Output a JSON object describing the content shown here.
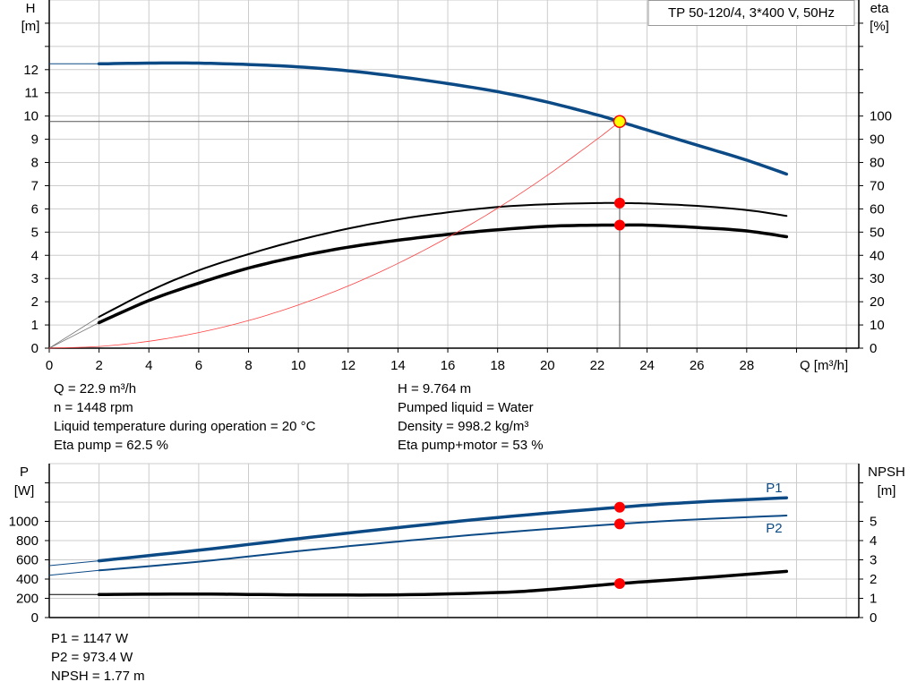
{
  "chart_data": [
    {
      "type": "line",
      "title": "TP 50-120/4, 3*400 V, 50Hz",
      "xlabel": "Q [m³/h]",
      "ylabel_left": [
        "H",
        "[m]"
      ],
      "ylabel_right": [
        "eta",
        "[%]"
      ],
      "xlim": [
        0,
        32.5
      ],
      "ylim_left": [
        0,
        15
      ],
      "ylim_right": [
        0,
        150
      ],
      "x_ticks": [
        0,
        2,
        4,
        6,
        8,
        10,
        12,
        14,
        16,
        18,
        20,
        22,
        24,
        26,
        28
      ],
      "y_ticks_left": [
        0,
        1,
        2,
        3,
        4,
        5,
        6,
        7,
        8,
        9,
        10,
        11,
        12
      ],
      "y_ticks_right": [
        0,
        10,
        20,
        30,
        40,
        50,
        60,
        70,
        80,
        90,
        100
      ],
      "grid": true,
      "colors": {
        "head": "#0c4a86",
        "efficiency": "#000000",
        "system": "#ff4040",
        "point": "#ff0000",
        "duty_point": "#ffff00"
      },
      "series": [
        {
          "key": "head",
          "axis": "left",
          "extension": {
            "x": [
              0,
              2
            ],
            "y": [
              12.25,
              12.25
            ]
          },
          "x": [
            2,
            4,
            6,
            8,
            10,
            12,
            14,
            16,
            18,
            20,
            22,
            22.9,
            24,
            26,
            28,
            29.6
          ],
          "y": [
            12.25,
            12.28,
            12.28,
            12.22,
            12.12,
            11.95,
            11.7,
            11.4,
            11.05,
            10.6,
            10.05,
            9.764,
            9.4,
            8.75,
            8.1,
            7.5
          ]
        },
        {
          "key": "eta_pump",
          "axis": "right",
          "x": [
            2,
            4,
            6,
            8,
            10,
            12,
            14,
            16,
            18,
            20,
            22,
            22.9,
            24,
            26,
            28,
            29.6
          ],
          "y": [
            13.5,
            24.5,
            33.5,
            40.5,
            46.5,
            51.5,
            55.5,
            58.5,
            60.8,
            62,
            62.5,
            62.5,
            62.3,
            61.3,
            59.5,
            57
          ]
        },
        {
          "key": "eta_pump_motor",
          "axis": "right",
          "x": [
            2,
            4,
            6,
            8,
            10,
            12,
            14,
            16,
            18,
            20,
            22,
            22.9,
            24,
            26,
            28,
            29.6
          ],
          "y": [
            11,
            20.5,
            28,
            34.5,
            39.5,
            43.5,
            46.5,
            49,
            51,
            52.5,
            53,
            53,
            53,
            52,
            50.5,
            48
          ]
        },
        {
          "key": "system_curve",
          "axis": "left",
          "x": [
            0,
            2,
            4,
            6,
            8,
            10,
            12,
            14,
            16,
            18,
            20,
            22,
            22.9
          ],
          "y": [
            0,
            0.074,
            0.298,
            0.67,
            1.19,
            1.86,
            2.68,
            3.65,
            4.77,
            6.03,
            7.45,
            9.01,
            9.764
          ]
        }
      ],
      "duty_point": {
        "Q": 22.9,
        "H": 9.764,
        "eta_pump": 62.5,
        "eta_pump_motor": 53
      }
    },
    {
      "type": "line",
      "xlim": [
        0,
        32.5
      ],
      "ylabel_left": [
        "P",
        "[W]"
      ],
      "ylabel_right": [
        "NPSH",
        "[m]"
      ],
      "ylim_left": [
        0,
        1600
      ],
      "ylim_right": [
        0,
        8
      ],
      "y_ticks_left": [
        0,
        200,
        400,
        600,
        800,
        1000
      ],
      "y_ticks_right": [
        0,
        1,
        2,
        3,
        4,
        5
      ],
      "grid": true,
      "series": [
        {
          "name": "P1",
          "axis": "left",
          "extension": {
            "x": [
              0,
              2
            ],
            "y": [
              540,
              590
            ]
          },
          "x": [
            2,
            6,
            10,
            14,
            18,
            22.9,
            26,
            29.6
          ],
          "y": [
            590,
            700,
            820,
            935,
            1040,
            1147,
            1200,
            1245
          ]
        },
        {
          "name": "P2",
          "axis": "left",
          "extension": {
            "x": [
              0,
              2
            ],
            "y": [
              440,
              490
            ]
          },
          "x": [
            2,
            6,
            10,
            14,
            18,
            22.9,
            26,
            29.6
          ],
          "y": [
            490,
            580,
            690,
            790,
            880,
            973.4,
            1020,
            1060
          ]
        },
        {
          "key": "npsh",
          "axis": "right",
          "extension": {
            "x": [
              0,
              2
            ],
            "y": [
              1.2,
              1.2
            ]
          },
          "x": [
            2,
            6,
            10,
            14,
            18,
            20,
            22.9,
            26,
            29.6
          ],
          "y": [
            1.2,
            1.22,
            1.18,
            1.18,
            1.3,
            1.45,
            1.77,
            2.05,
            2.4
          ]
        }
      ],
      "duty_point": {
        "Q": 22.9,
        "P1": 1147,
        "P2": 973.4,
        "NPSH": 1.77
      }
    }
  ],
  "info_top_left": [
    "Q = 22.9 m³/h",
    "n = 1448 rpm",
    "Liquid temperature during operation = 20 °C",
    "Eta pump = 62.5 %"
  ],
  "info_top_right": [
    "H = 9.764 m",
    "Pumped liquid = Water",
    "Density = 998.2 kg/m³",
    "Eta pump+motor = 53 %"
  ],
  "info_bottom": [
    "P1 = 1147 W",
    "P2 = 973.4 W",
    "NPSH = 1.77 m"
  ]
}
